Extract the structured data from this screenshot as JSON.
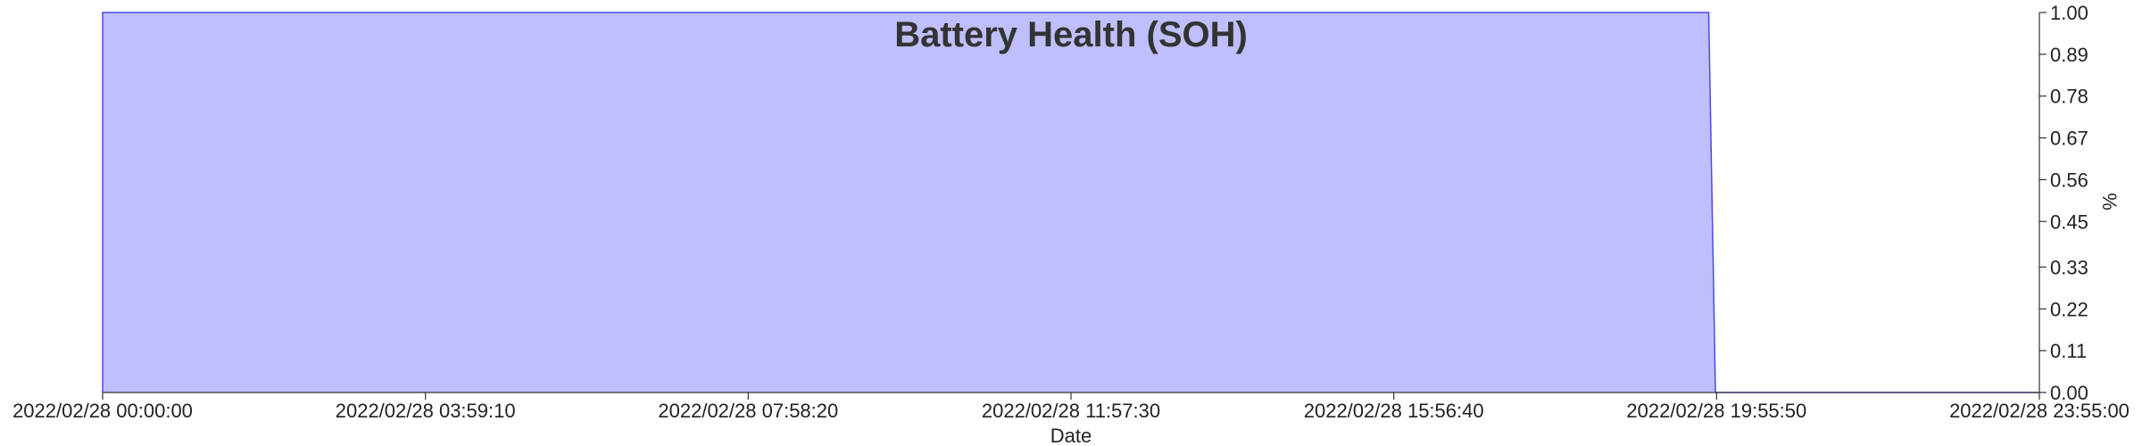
{
  "chart_data": {
    "type": "area",
    "title": "Battery Health (SOH)",
    "xlabel": "Date",
    "ylabel": "%",
    "x": [
      "2022/02/28 00:00:00",
      "2022/02/28 19:50:00",
      "2022/02/28 19:55:00",
      "2022/02/28 23:55:00"
    ],
    "values": [
      1.0,
      1.0,
      0.0,
      0.0
    ],
    "xlim": [
      "2022/02/28 00:00:00",
      "2022/02/28 23:55:00"
    ],
    "x_tick_labels": [
      "2022/02/28 00:00:00",
      "2022/02/28 03:59:10",
      "2022/02/28 07:58:20",
      "2022/02/28 11:57:30",
      "2022/02/28 15:56:40",
      "2022/02/28 19:55:50",
      "2022/02/28 23:55:00"
    ],
    "ylim": [
      0,
      1
    ],
    "y_tick_labels": [
      "0.00",
      "0.11",
      "0.22",
      "0.33",
      "0.45",
      "0.56",
      "0.67",
      "0.78",
      "0.89",
      "1.00"
    ],
    "y_axis_side": "right",
    "grid": false,
    "legend": "none",
    "colors": {
      "fill": "#bfbffd",
      "line": "#4a4ae8",
      "axis": "#333333",
      "text": "#222222",
      "title": "#333333"
    }
  }
}
